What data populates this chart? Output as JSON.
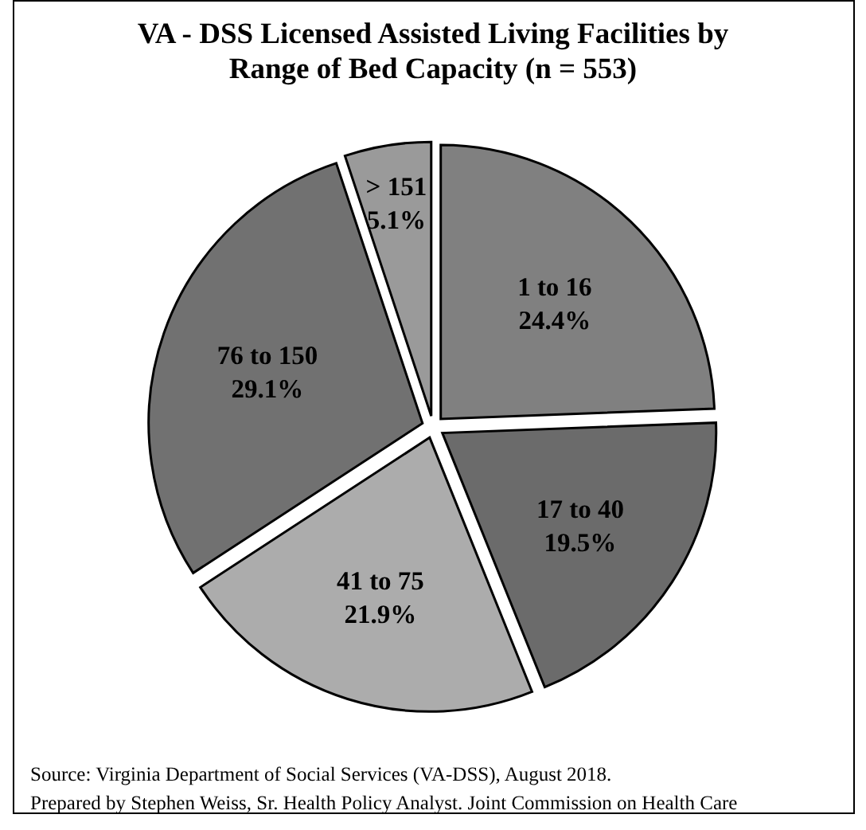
{
  "chart_data": {
    "type": "pie",
    "title": "VA - DSS Licensed Assisted Living Facilities by Range of Bed Capacity (n = 553)",
    "categories": [
      "1 to 16",
      "17 to 40",
      "41 to 75",
      "76 to 150",
      "> 151"
    ],
    "values": [
      24.4,
      19.5,
      21.9,
      29.1,
      5.1
    ],
    "value_labels": [
      "24.4%",
      "19.5%",
      "21.9%",
      "29.1%",
      "5.1%"
    ],
    "colors": [
      "#808080",
      "#6b6b6b",
      "#acacac",
      "#717171",
      "#9a9a9a"
    ],
    "annotations": [
      "Source: Virginia Department of Social Services (VA-DSS), August 2018.",
      "Prepared by Stephen Weiss, Sr. Health Policy Analyst. Joint Commission on Health Care"
    ]
  }
}
